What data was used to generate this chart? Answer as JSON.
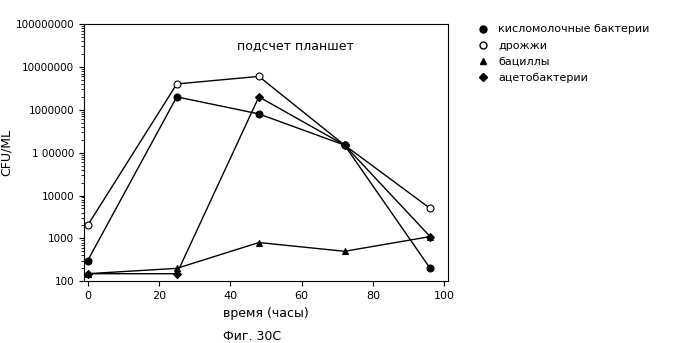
{
  "title": "подсчет планшет",
  "xlabel": "время (часы)",
  "ylabel": "CFU/ML",
  "caption": "Фиг. 30С",
  "x_ticks": [
    0,
    20,
    40,
    60,
    80,
    100
  ],
  "xlim": [
    -1,
    101
  ],
  "ylim_log": [
    100,
    100000000
  ],
  "series": [
    {
      "label": "кисломолочные бактерии",
      "x": [
        0,
        25,
        48,
        72,
        96
      ],
      "y": [
        300,
        2000000,
        800000,
        150000,
        200
      ],
      "marker": "o",
      "marker_filled": true,
      "markersize": 5
    },
    {
      "label": "дрожжи",
      "x": [
        0,
        25,
        48,
        72,
        96
      ],
      "y": [
        2000,
        4000000,
        6000000,
        150000,
        5000
      ],
      "marker": "o",
      "marker_filled": false,
      "markersize": 5
    },
    {
      "label": "бациллы",
      "x": [
        0,
        25,
        48,
        72,
        96
      ],
      "y": [
        150,
        200,
        800,
        500,
        1100
      ],
      "marker": "^",
      "marker_filled": true,
      "markersize": 5
    },
    {
      "label": "ацетобактерии",
      "x": [
        0,
        25,
        48,
        72,
        96
      ],
      "y": [
        150,
        150,
        2000000,
        150000,
        1100
      ],
      "marker": "D",
      "marker_filled": true,
      "markersize": 4
    }
  ],
  "legend_labels": [
    "кисломолочные бактерии",
    "дрожжи",
    "бациллы",
    "ацетобактерии"
  ],
  "background_color": "#ffffff",
  "yticks": [
    100,
    1000,
    10000,
    100000,
    1000000,
    10000000,
    100000000
  ],
  "ytick_labels": [
    "100",
    "1000",
    "10000",
    "1 00000",
    "1000000",
    "10000000",
    "100000000"
  ]
}
